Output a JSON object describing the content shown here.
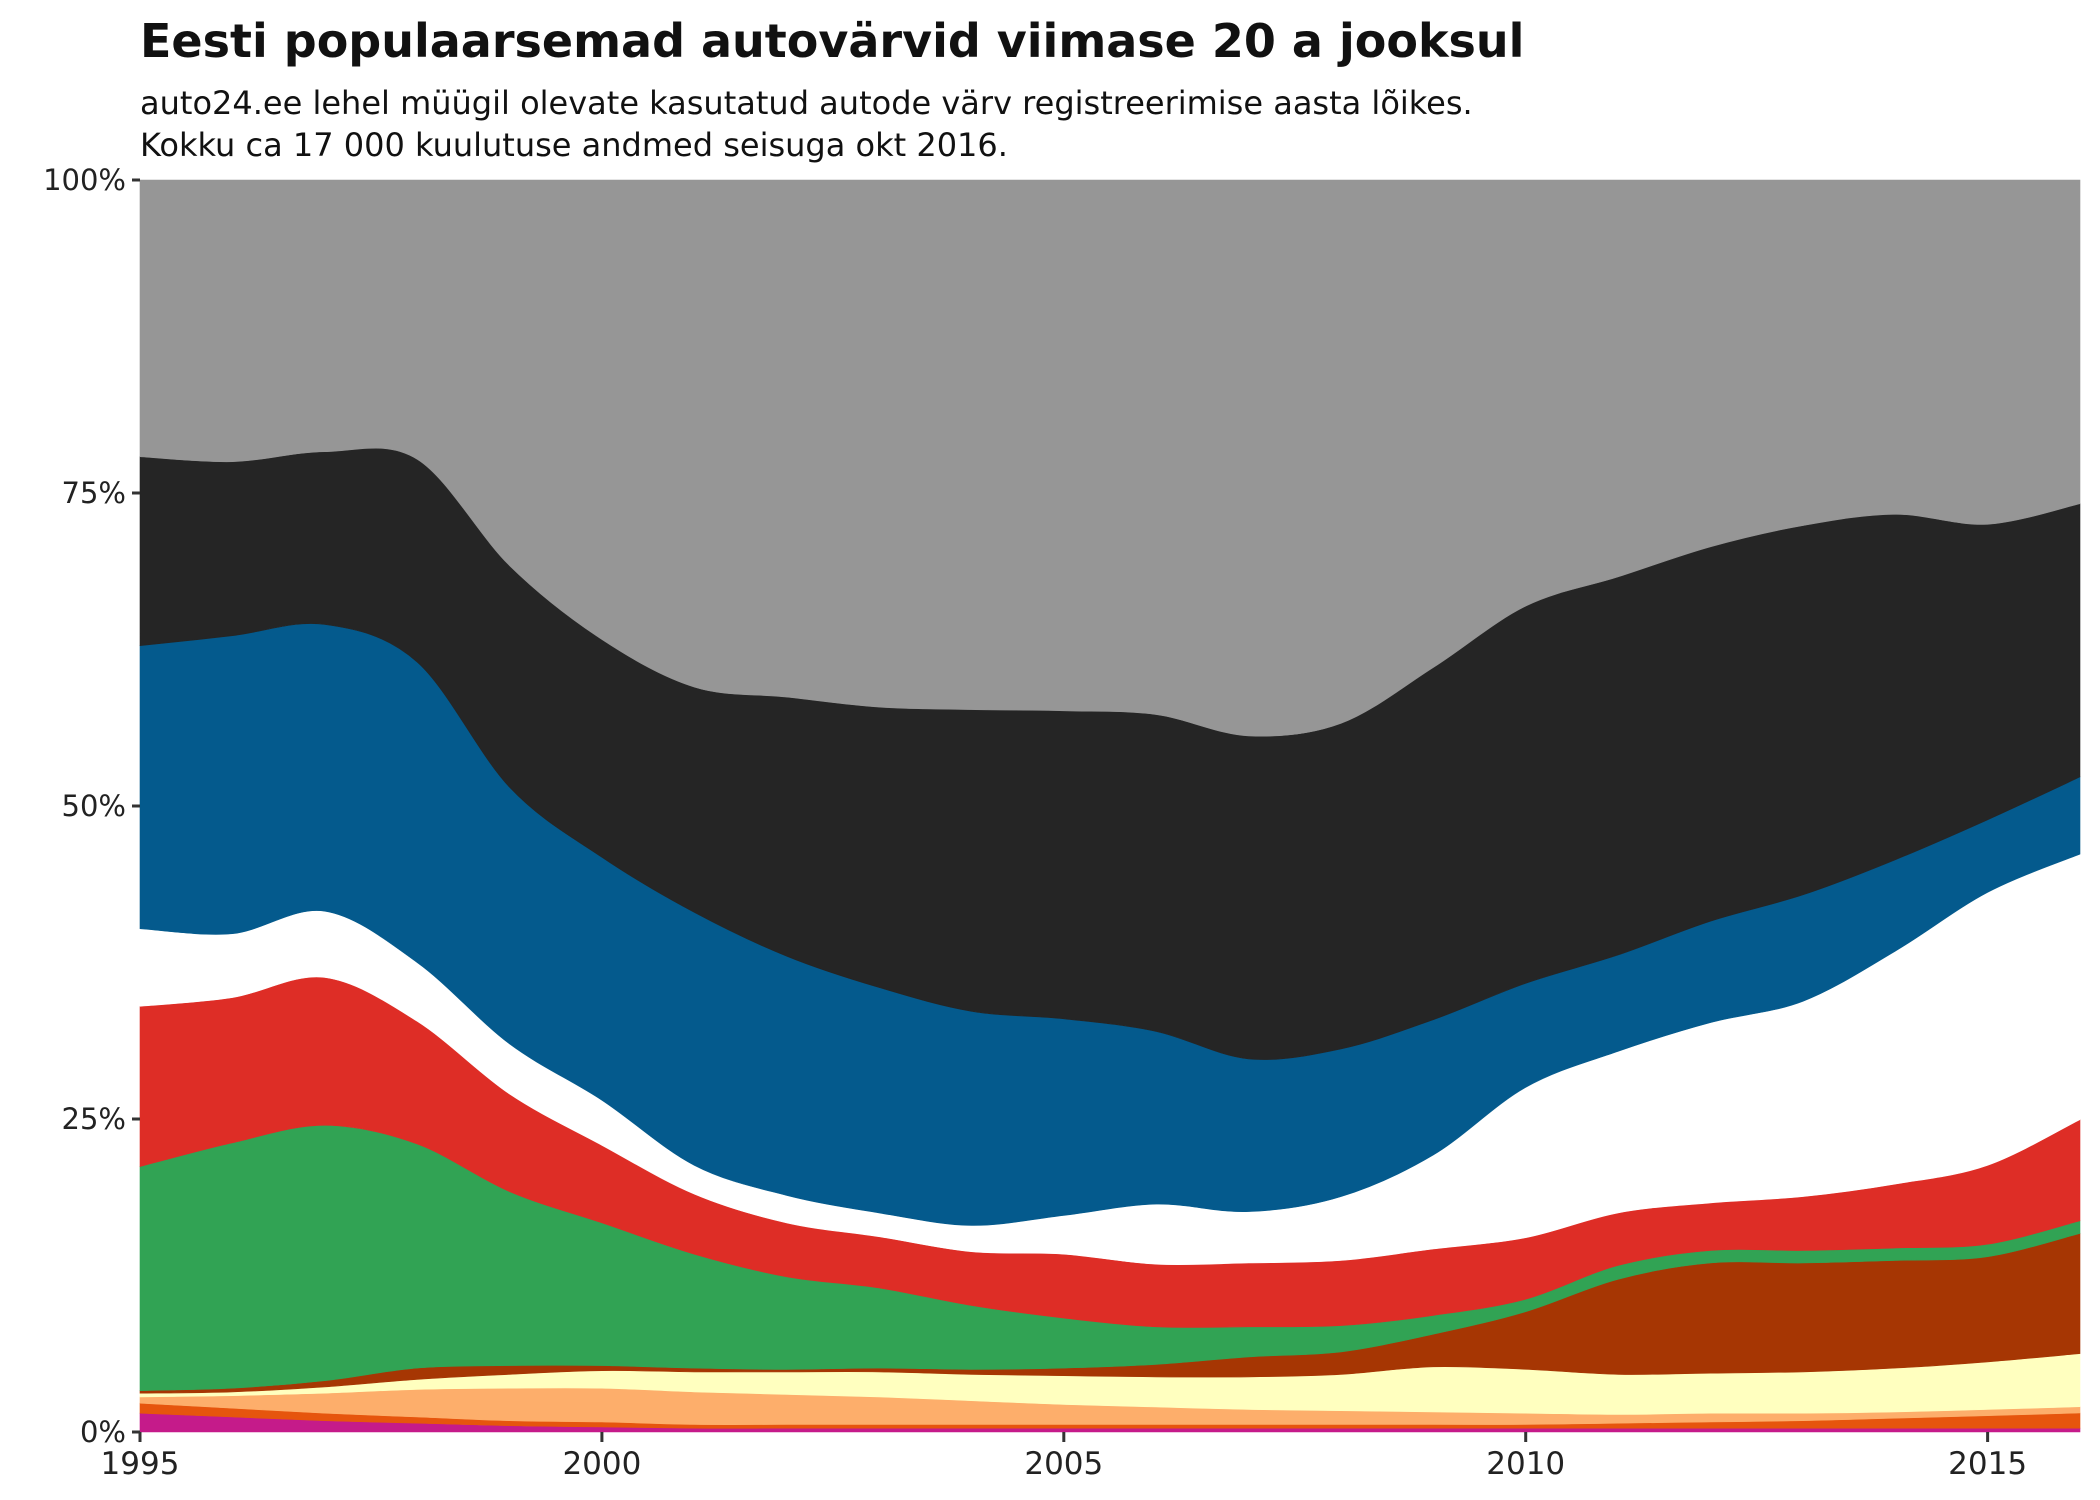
{
  "chart_data": {
    "type": "area",
    "stacked": true,
    "normalized": true,
    "title": "Eesti populaarsemad autovärvid viimase 20 a jooksul",
    "subtitle": [
      "auto24.ee lehel müügil olevate kasutatud autode värv registreerimise aasta lõikes.",
      "Kokku ca 17 000 kuulutuse andmed seisuga okt 2016."
    ],
    "xlabel": "",
    "ylabel": "",
    "x": [
      1995,
      1996,
      1997,
      1998,
      1999,
      2000,
      2001,
      2002,
      2003,
      2004,
      2005,
      2006,
      2007,
      2008,
      2009,
      2010,
      2011,
      2012,
      2013,
      2014,
      2015,
      2016
    ],
    "xlim": [
      1995,
      2016
    ],
    "ylim": [
      0,
      100
    ],
    "x_ticks": [
      1995,
      2000,
      2005,
      2010,
      2015
    ],
    "y_ticks": [
      0,
      25,
      50,
      75,
      100
    ],
    "y_tick_labels": [
      "0%",
      "25%",
      "50%",
      "75%",
      "100%"
    ],
    "grid": false,
    "legend": "none",
    "series": [
      {
        "color": "#c51b8a",
        "values": [
          1.5,
          1.2,
          0.9,
          0.7,
          0.5,
          0.4,
          0.3,
          0.3,
          0.3,
          0.3,
          0.3,
          0.3,
          0.3,
          0.3,
          0.3,
          0.3,
          0.3,
          0.3,
          0.3,
          0.3,
          0.3,
          0.3
        ]
      },
      {
        "color": "#e6550d",
        "values": [
          0.8,
          0.7,
          0.6,
          0.5,
          0.4,
          0.4,
          0.3,
          0.3,
          0.3,
          0.3,
          0.3,
          0.3,
          0.3,
          0.3,
          0.3,
          0.3,
          0.4,
          0.5,
          0.6,
          0.8,
          1.0,
          1.2
        ]
      },
      {
        "color": "#fdae6b",
        "values": [
          0.5,
          1.0,
          1.6,
          2.2,
          2.6,
          2.7,
          2.6,
          2.4,
          2.2,
          1.9,
          1.6,
          1.4,
          1.2,
          1.1,
          1.0,
          0.9,
          0.7,
          0.7,
          0.6,
          0.5,
          0.5,
          0.5
        ]
      },
      {
        "color": "#ffffbf",
        "values": [
          0.3,
          0.3,
          0.5,
          0.8,
          1.1,
          1.4,
          1.6,
          1.8,
          2.0,
          2.1,
          2.3,
          2.4,
          2.6,
          2.9,
          3.6,
          3.5,
          3.2,
          3.2,
          3.3,
          3.5,
          3.8,
          4.2
        ]
      },
      {
        "color": "#a63603",
        "values": [
          0.2,
          0.3,
          0.5,
          0.9,
          0.7,
          0.4,
          0.3,
          0.2,
          0.3,
          0.4,
          0.6,
          1.0,
          1.6,
          1.8,
          2.6,
          4.6,
          7.6,
          8.8,
          8.7,
          8.6,
          8.4,
          9.5
        ]
      },
      {
        "color": "#31a354",
        "values": [
          17.9,
          19.6,
          20.4,
          17.9,
          13.9,
          11.4,
          9.1,
          7.4,
          6.4,
          5.1,
          4.0,
          3.0,
          2.4,
          2.1,
          1.5,
          1.0,
          1.1,
          1.0,
          1.0,
          1.0,
          1.0,
          1.0
        ]
      },
      {
        "color": "#de2d26",
        "values": [
          12.8,
          11.6,
          11.8,
          9.8,
          7.8,
          6.2,
          4.8,
          4.3,
          4.1,
          4.3,
          5.1,
          5.0,
          5.1,
          5.2,
          5.3,
          4.9,
          4.2,
          3.8,
          4.3,
          5.1,
          6.3,
          8.0
        ]
      },
      {
        "color": "#ffffff",
        "values": [
          6.2,
          5.1,
          5.3,
          4.7,
          4.0,
          3.6,
          2.3,
          2.2,
          1.9,
          2.1,
          3.1,
          4.8,
          4.1,
          5.1,
          7.5,
          12.0,
          12.9,
          14.4,
          15.6,
          18.6,
          21.8,
          21.0
        ]
      },
      {
        "color": "#045a8d",
        "values": [
          22.6,
          23.8,
          22.9,
          24.0,
          20.5,
          19.4,
          20.2,
          19.1,
          18.0,
          17.1,
          15.7,
          13.8,
          12.2,
          11.8,
          10.8,
          8.3,
          7.7,
          8.1,
          8.5,
          7.3,
          5.8,
          6.1
        ]
      },
      {
        "color": "#252525",
        "values": [
          15.1,
          13.9,
          13.8,
          16.2,
          17.7,
          17.4,
          18.0,
          20.7,
          22.4,
          24.1,
          24.6,
          25.3,
          25.8,
          26.0,
          28.1,
          30.1,
          30.2,
          29.9,
          29.5,
          27.6,
          23.6,
          21.6
        ]
      },
      {
        "color": "#969696",
        "values": [
          22.1,
          22.5,
          21.7,
          22.3,
          30.8,
          36.7,
          40.5,
          41.3,
          42.1,
          42.3,
          42.4,
          42.7,
          44.4,
          43.4,
          38.9,
          34.0,
          31.7,
          29.3,
          27.6,
          26.7,
          27.5,
          25.6
        ]
      }
    ]
  }
}
